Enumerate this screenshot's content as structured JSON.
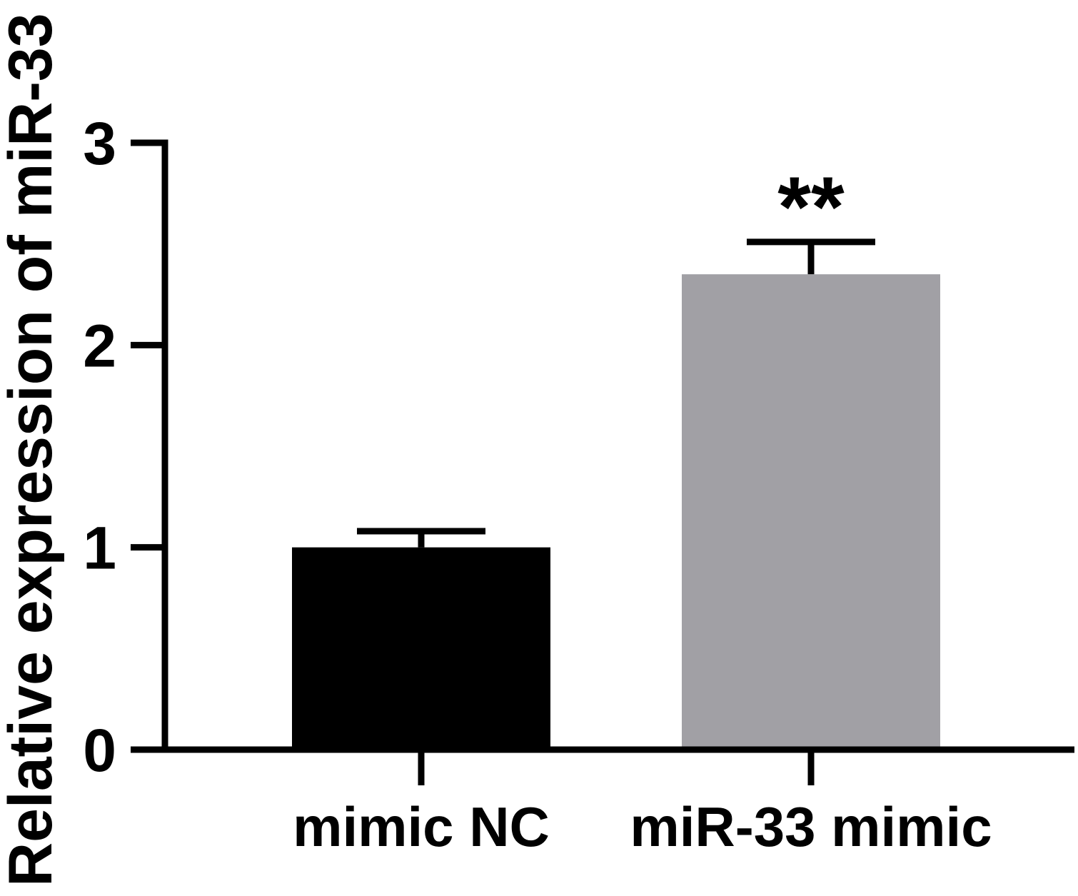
{
  "chart_data": {
    "type": "bar",
    "categories": [
      "mimic NC",
      "miR-33 mimic"
    ],
    "values": [
      1.0,
      2.35
    ],
    "error": [
      0.08,
      0.16
    ],
    "colors": [
      "#000000",
      "#a1a0a5"
    ],
    "ylabel": "Relative expression of miR-33",
    "xlabel": "",
    "ylim": [
      0,
      3
    ],
    "yticks": [
      "0",
      "1",
      "2",
      "3"
    ],
    "annotations": [
      "",
      "**"
    ],
    "grid": false,
    "legend": "none"
  }
}
